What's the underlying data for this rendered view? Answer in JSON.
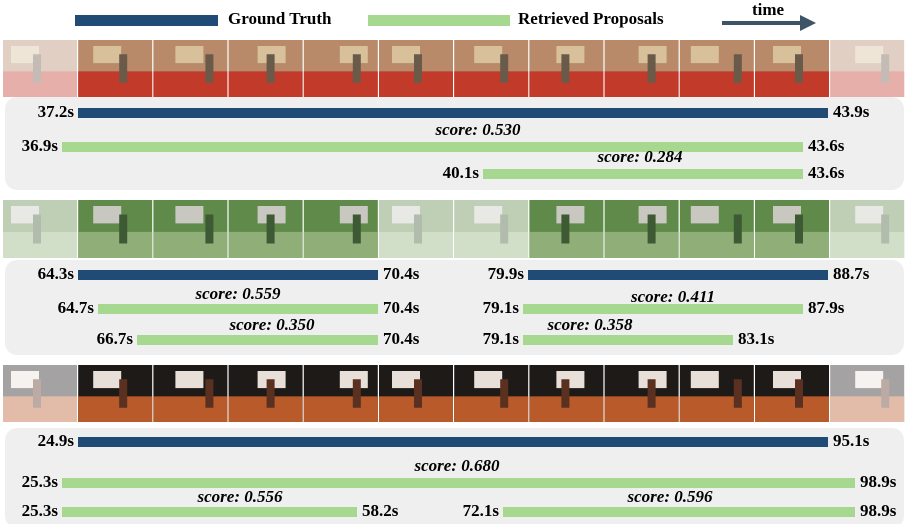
{
  "legend": {
    "ground_truth": "Ground Truth",
    "retrieved_proposals": "Retrieved Proposals",
    "time": "time"
  },
  "panels": [
    {
      "segments": [
        {
          "ground_truth": {
            "start": "37.2s",
            "end": "43.9s"
          },
          "proposals": [
            {
              "start": "36.9s",
              "end": "43.6s",
              "score": "score: 0.530"
            },
            {
              "start": "40.1s",
              "end": "43.6s",
              "score": "score: 0.284"
            }
          ]
        }
      ]
    },
    {
      "segments": [
        {
          "ground_truth": {
            "start": "64.3s",
            "end": "70.4s"
          },
          "proposals": [
            {
              "start": "64.7s",
              "end": "70.4s",
              "score": "score: 0.559"
            },
            {
              "start": "66.7s",
              "end": "70.4s",
              "score": "score: 0.350"
            }
          ]
        },
        {
          "ground_truth": {
            "start": "79.9s",
            "end": "88.7s"
          },
          "proposals": [
            {
              "start": "79.1s",
              "end": "87.9s",
              "score": "score: 0.411"
            },
            {
              "start": "79.1s",
              "end": "83.1s",
              "score": "score: 0.358"
            }
          ]
        }
      ]
    },
    {
      "segments": [
        {
          "ground_truth": {
            "start": "24.9s",
            "end": "95.1s"
          },
          "proposals": [
            {
              "start": "25.3s",
              "end": "98.9s",
              "score": "score: 0.680"
            },
            {
              "start": "25.3s",
              "end": "58.2s",
              "score": "score: 0.556"
            },
            {
              "start": "72.1s",
              "end": "98.9s",
              "score": "score: 0.596"
            }
          ]
        }
      ]
    }
  ]
}
